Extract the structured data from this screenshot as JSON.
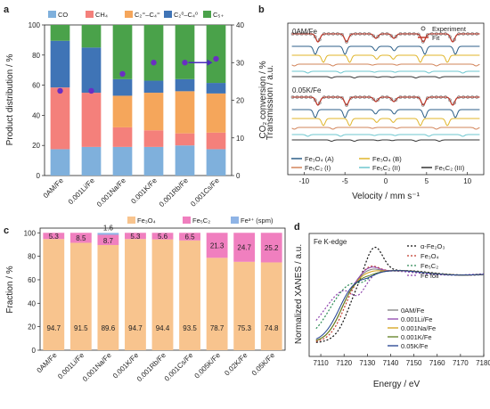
{
  "chart_data": [
    {
      "panel": "a",
      "type": "bar",
      "categories": [
        "0AM/Fe",
        "0.001Li/Fe",
        "0.001Na/Fe",
        "0.001K/Fe",
        "0.001Rb/Fe",
        "0.001Cs/Fe"
      ],
      "ylabel": "Product distribution / %",
      "ylim": [
        0,
        100
      ],
      "y_ticks": [
        "0",
        "20",
        "40",
        "60",
        "80",
        "100"
      ],
      "y2label": "CO₂ conversion / %",
      "y2lim": [
        0,
        40
      ],
      "y2_ticks": [
        "0",
        "10",
        "20",
        "30",
        "40"
      ],
      "series": [
        {
          "name": "CO",
          "color": "#7fb0dc",
          "values": [
            17.5,
            19,
            19,
            19,
            20,
            17.5
          ]
        },
        {
          "name": "CH₄",
          "color": "#f4807b",
          "values": [
            41,
            36,
            13,
            11,
            8,
            11
          ]
        },
        {
          "name": "C₂⁼–C₄⁼",
          "color": "#f5a65b",
          "values": [
            0,
            0,
            21,
            25,
            28,
            26
          ]
        },
        {
          "name": "C₂⁰–C₄⁰",
          "color": "#3f74b6",
          "values": [
            31,
            30,
            11,
            8,
            8,
            7
          ]
        },
        {
          "name": "C₅₊",
          "color": "#4aa24a",
          "values": [
            10.5,
            15,
            36,
            37,
            36,
            38.5
          ]
        }
      ],
      "conversion_series": {
        "values": [
          22.5,
          22.5,
          27,
          30,
          30,
          31
        ],
        "color": "#6a2fc2",
        "marker": "circle",
        "axis": "right"
      },
      "annotation_arrow": {
        "from_category": "0.001Rb/Fe",
        "to_category": "0.001Cs/Fe",
        "color": "#4b2bbf"
      }
    },
    {
      "panel": "b",
      "type": "line",
      "xlabel": "Velocity / mm s⁻¹",
      "ylabel": "Transmission / a.u.",
      "xlim": [
        -12,
        12
      ],
      "x_ticks": [
        "-10",
        "-5",
        "0",
        "5",
        "10"
      ],
      "subpanel_labels": [
        "0AM/Fe",
        "0.05K/Fe"
      ],
      "legend_top": [
        {
          "name": "Experiment",
          "color": "#555555",
          "marker": "open-circle"
        },
        {
          "name": "Fit",
          "color": "#c0392b"
        }
      ],
      "legend_bottom": [
        {
          "name": "Fe₃O₄ (A)",
          "color": "#2c5f88"
        },
        {
          "name": "Fe₃O₄ (B)",
          "color": "#e0b52a"
        },
        {
          "name": "Fe₅C₂ (I)",
          "color": "#d2845a"
        },
        {
          "name": "Fe₅C₂ (II)",
          "color": "#6ec7cf"
        },
        {
          "name": "Fe₅C₂ (III)",
          "color": "#333333"
        }
      ],
      "sextet_line_positions": [
        -8.3,
        -4.8,
        -1.2,
        1.0,
        4.6,
        8.2
      ]
    },
    {
      "panel": "c",
      "type": "bar",
      "categories": [
        "0AM/Fe",
        "0.001Li/Fe",
        "0.001Na/Fe",
        "0.001K/Fe",
        "0.001Rb/Fe",
        "0.001Cs/Fe",
        "0.005K/Fe",
        "0.02K/Fe",
        "0.05K/Fe"
      ],
      "ylabel": "Fraction / %",
      "ylim": [
        0,
        104
      ],
      "y_ticks": [
        "0",
        "20",
        "40",
        "60",
        "80",
        "100"
      ],
      "series": [
        {
          "name": "Fe₃O₄",
          "color": "#f8c48e",
          "values": [
            94.7,
            91.5,
            89.6,
            94.7,
            94.4,
            93.5,
            78.7,
            75.3,
            74.8
          ],
          "labels": [
            "94.7",
            "91.5",
            "89.6",
            "94.7",
            "94.4",
            "93.5",
            "78.7",
            "75.3",
            "74.8"
          ]
        },
        {
          "name": "Fe₅C₂",
          "color": "#f07fbf",
          "values": [
            5.3,
            8.5,
            8.7,
            5.3,
            5.6,
            6.5,
            21.3,
            24.7,
            25.2
          ],
          "labels": [
            "5.3",
            "8.5",
            "8.7",
            "5.3",
            "5.6",
            "6.5",
            "21.3",
            "24.7",
            "25.2"
          ]
        },
        {
          "name": "Fe³⁺ (spm)",
          "color": "#8fb4e6",
          "values": [
            0,
            0,
            1.6,
            0,
            0,
            0,
            0,
            0,
            0
          ],
          "labels": [
            "",
            "",
            "1.6",
            "",
            "",
            "",
            "",
            "",
            ""
          ]
        }
      ]
    },
    {
      "panel": "d",
      "type": "line",
      "title": "Fe K-edge",
      "xlabel": "Energy / eV",
      "ylabel": "Normalized XANES / a.u.",
      "xlim": [
        7105,
        7180
      ],
      "x_ticks": [
        "7110",
        "7120",
        "7130",
        "7140",
        "7150",
        "7160",
        "7170",
        "7180"
      ],
      "series": [
        {
          "name": "α-Fe₂O₃",
          "color": "#111111",
          "dash": "dot"
        },
        {
          "name": "Fe₃O₄",
          "color": "#c0392b",
          "dash": "dot"
        },
        {
          "name": "Fe₅C₂",
          "color": "#2e8b57",
          "dash": "dot"
        },
        {
          "name": "Fe foil",
          "color": "#8e44ad",
          "dash": "dot"
        },
        {
          "name": "0AM/Fe",
          "color": "#7f7f7f"
        },
        {
          "name": "0.001Li/Fe",
          "color": "#8e44ad"
        },
        {
          "name": "0.001Na/Fe",
          "color": "#d4a017"
        },
        {
          "name": "0.001K/Fe",
          "color": "#5f7f1f"
        },
        {
          "name": "0.05K/Fe",
          "color": "#1f3f8f"
        }
      ]
    }
  ]
}
